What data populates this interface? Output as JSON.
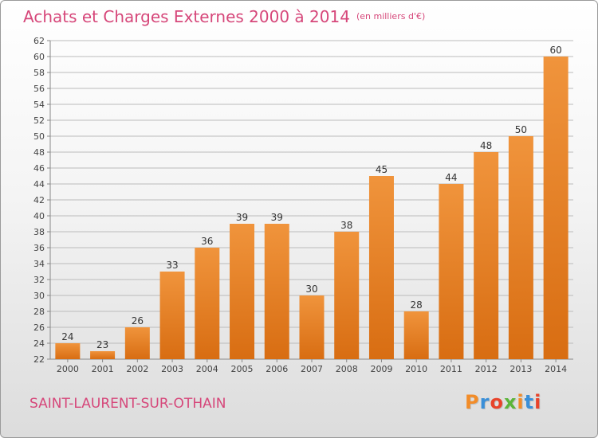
{
  "title": "Achats et Charges Externes 2000 à 2014",
  "title_unit": "(en milliers d'€)",
  "location": "SAINT-LAURENT-SUR-OTHAIN",
  "brand": {
    "text": "Proxiti",
    "colors": [
      "#f28c28",
      "#3a8fd8",
      "#e8432a",
      "#5bb53a",
      "#f28c28",
      "#3a8fd8",
      "#e8432a"
    ]
  },
  "colors": {
    "title": "#d6477a",
    "bar": "#f0943c",
    "bar_dark": "#d86d12",
    "grid": "#bbbbbb"
  },
  "chart_data": {
    "type": "bar",
    "categories": [
      "2000",
      "2001",
      "2002",
      "2003",
      "2004",
      "2005",
      "2006",
      "2007",
      "2008",
      "2009",
      "2010",
      "2011",
      "2012",
      "2013",
      "2014"
    ],
    "values": [
      24,
      23,
      26,
      33,
      36,
      39,
      39,
      30,
      38,
      45,
      28,
      44,
      48,
      50,
      60
    ],
    "ylim": [
      22,
      62
    ],
    "ytick_step": 2,
    "grid": true,
    "data_labels": true
  }
}
